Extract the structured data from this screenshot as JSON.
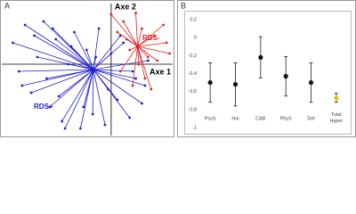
{
  "chart_data": [
    {
      "type": "scatter",
      "title": "A",
      "xlabel": "Axe 1",
      "ylabel": "Axe 2",
      "xlim": [
        -1.75,
        1
      ],
      "ylim": [
        -1,
        0.75
      ],
      "series": [
        {
          "name": "RDS+",
          "color": "#1f1fd0",
          "center": [
            -0.29,
            -0.075
          ],
          "x": [
            -1.6,
            -1.5,
            -1.4,
            -1.3,
            -1.2,
            -1.1,
            -1.0,
            -0.9,
            -0.8,
            -0.7,
            -0.6,
            -0.5,
            -0.4,
            -0.3,
            -0.2,
            -0.1,
            0,
            0.1,
            0.2,
            0.3,
            0.4,
            0.5,
            0.6,
            -1.45,
            -1.25,
            -1.05,
            -0.85,
            -0.65,
            -0.45,
            -0.25,
            -0.05,
            0.15,
            0.35,
            0.55,
            -0.95,
            -0.75
          ],
          "y": [
            0.3,
            -0.1,
            0.55,
            -0.4,
            0.1,
            0.6,
            -0.6,
            0.35,
            -0.8,
            0.0,
            0.45,
            -0.9,
            0.2,
            -0.7,
            0.5,
            -0.85,
            0.15,
            -0.5,
            0.3,
            -0.75,
            -0.2,
            -0.55,
            0.05,
            -0.3,
            0.4,
            -0.2,
            -0.45,
            0.25,
            -0.6,
            0.1,
            -0.35,
            0.4,
            -0.1,
            -0.3,
            0.5,
            -0.9
          ]
        },
        {
          "name": "RDS-",
          "color": "#e02020",
          "center": [
            0.43,
            0.25
          ],
          "x": [
            0.0,
            0.1,
            0.2,
            0.3,
            0.4,
            0.5,
            0.6,
            0.7,
            0.9,
            0.95,
            0.15,
            0.35,
            0.55,
            0.75,
            0.85,
            0.25,
            0.65,
            0.45
          ],
          "y": [
            0.7,
            0.45,
            0.6,
            0.2,
            0.72,
            0.5,
            0.1,
            0.4,
            0.3,
            0.15,
            -0.1,
            -0.3,
            -0.2,
            0.05,
            0.55,
            0.35,
            -0.35,
            0.0
          ]
        }
      ]
    },
    {
      "type": "errorbar",
      "title": "B",
      "categories": [
        "PsyS",
        "Hal",
        "CAB",
        "PhyS",
        "Del",
        "Total Hyper"
      ],
      "values": [
        -0.5,
        -0.52,
        -0.22,
        -0.43,
        -0.5,
        -0.67
      ],
      "errors": [
        0.22,
        0.24,
        0.23,
        0.22,
        0.22,
        0.05
      ],
      "colors": [
        "#111111",
        "#111111",
        "#111111",
        "#111111",
        "#111111",
        "#f0c020"
      ],
      "ylim": [
        -1,
        0.2
      ],
      "yticks": [
        {
          "value": 0.2,
          "label": "0,2"
        },
        0,
        {
          "value": -0.2,
          "label": "-0,2"
        },
        {
          "value": -0.4,
          "label": "-0,4"
        },
        {
          "value": -0.6,
          "label": "-0,6"
        },
        {
          "value": -0.8,
          "label": "-0,8"
        },
        -1
      ]
    }
  ]
}
